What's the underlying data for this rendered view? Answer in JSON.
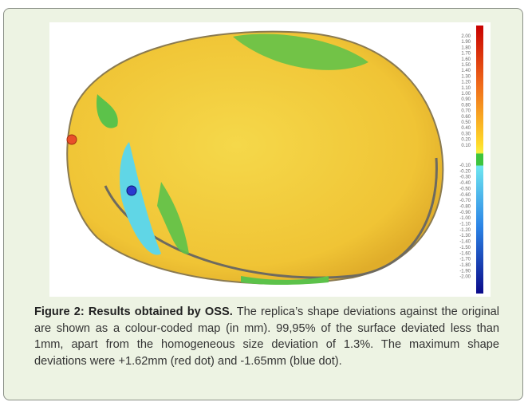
{
  "figure": {
    "colorbar": {
      "labels": [
        "2.00",
        "1.90",
        "1.80",
        "1.70",
        "1.60",
        "1.50",
        "1.40",
        "1.30",
        "1.20",
        "1.10",
        "1.00",
        "0.90",
        "0.80",
        "0.70",
        "0.60",
        "0.50",
        "0.40",
        "0.30",
        "0.20",
        "0.10",
        "-0.10",
        "-0.20",
        "-0.30",
        "-0.40",
        "-0.50",
        "-0.60",
        "-0.70",
        "-0.80",
        "-0.90",
        "-1.00",
        "-1.10",
        "-1.20",
        "-1.30",
        "-1.40",
        "-1.50",
        "-1.60",
        "-1.70",
        "-1.80",
        "-1.90",
        "-2.00"
      ]
    },
    "caption": {
      "label": "Figure 2: Results obtained by OSS.",
      "text": "The replica’s shape deviations against the original are shown as a colour-coded map (in mm). 99,95% of the surface deviated less than 1mm, apart from the homogeneous size deviation of 1.3%. The maximum shape deviations were +1.62mm (red dot) and -1.65mm (blue dot)."
    }
  }
}
